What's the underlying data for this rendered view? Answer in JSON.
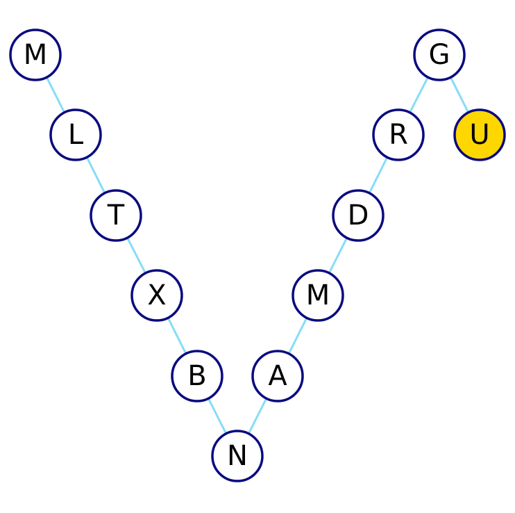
{
  "colors": {
    "edge": "#87dcf7",
    "node_stroke": "#0a0a80",
    "node_fill": "#ffffff",
    "highlight_fill": "#ffd700"
  },
  "nodes": [
    {
      "id": "m1",
      "label": "M",
      "highlighted": false
    },
    {
      "id": "l",
      "label": "L",
      "highlighted": false
    },
    {
      "id": "t",
      "label": "T",
      "highlighted": false
    },
    {
      "id": "x",
      "label": "X",
      "highlighted": false
    },
    {
      "id": "b",
      "label": "B",
      "highlighted": false
    },
    {
      "id": "n",
      "label": "N",
      "highlighted": false
    },
    {
      "id": "a",
      "label": "A",
      "highlighted": false
    },
    {
      "id": "m2",
      "label": "M",
      "highlighted": false
    },
    {
      "id": "d",
      "label": "D",
      "highlighted": false
    },
    {
      "id": "r",
      "label": "R",
      "highlighted": false
    },
    {
      "id": "g",
      "label": "G",
      "highlighted": false
    },
    {
      "id": "u",
      "label": "U",
      "highlighted": true
    }
  ],
  "edges": [
    [
      "m1",
      "l"
    ],
    [
      "l",
      "t"
    ],
    [
      "t",
      "x"
    ],
    [
      "x",
      "b"
    ],
    [
      "b",
      "n"
    ],
    [
      "n",
      "a"
    ],
    [
      "a",
      "m2"
    ],
    [
      "m2",
      "d"
    ],
    [
      "d",
      "r"
    ],
    [
      "r",
      "g"
    ],
    [
      "g",
      "u"
    ]
  ]
}
